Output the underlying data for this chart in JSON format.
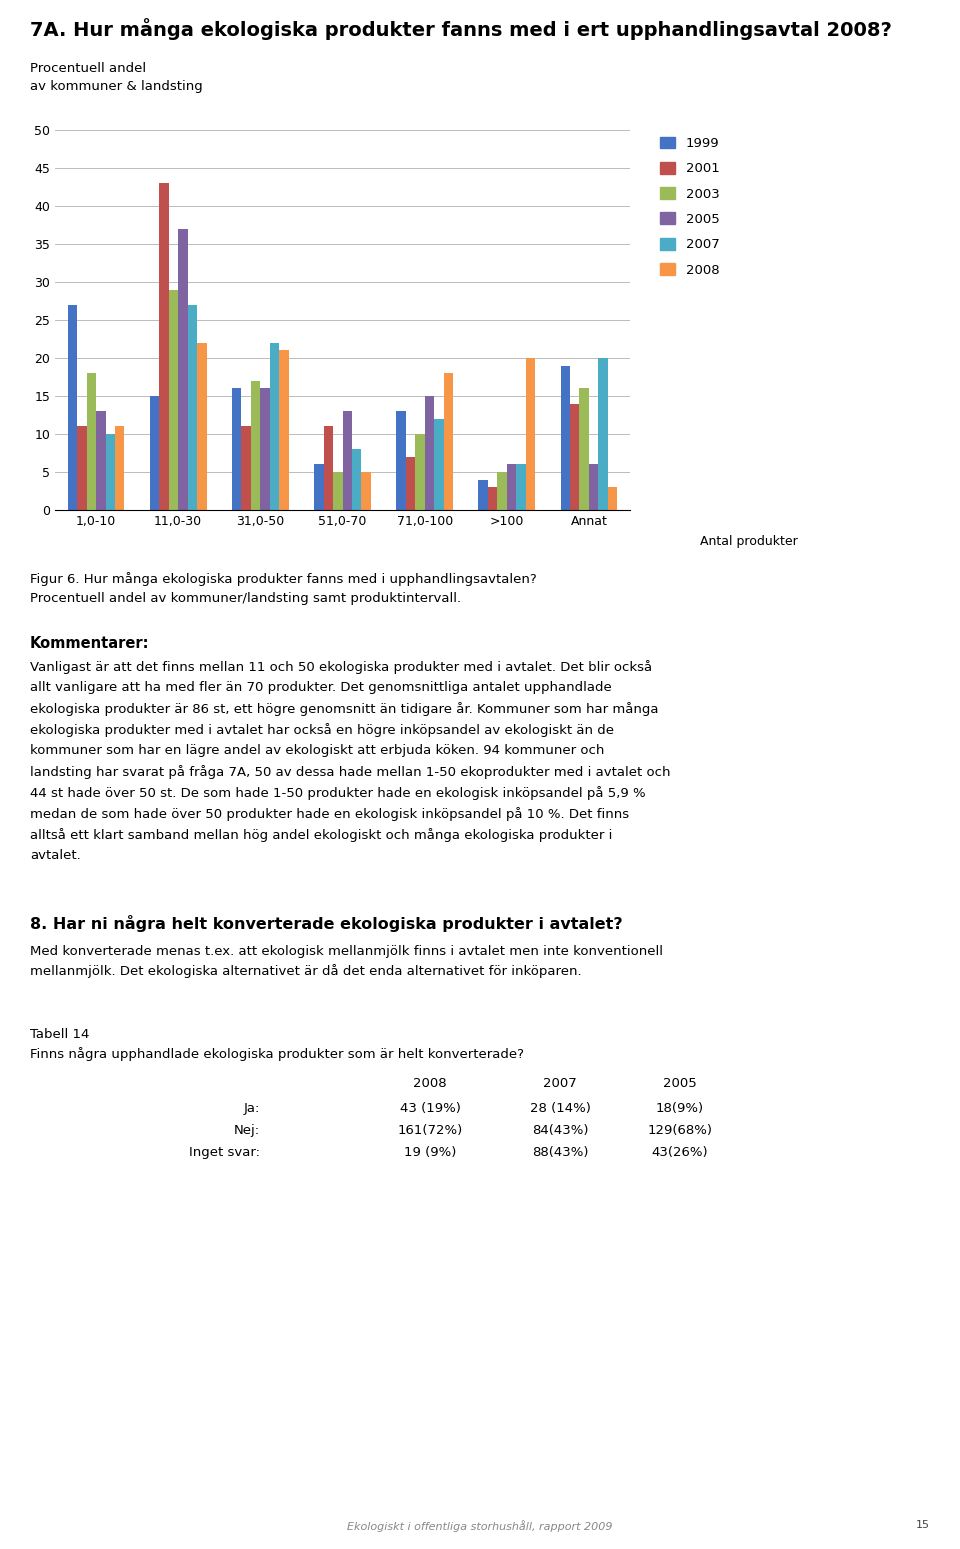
{
  "title": "7A. Hur många ekologiska produkter fanns med i ert upphandlingsavtal 2008?",
  "ylabel_line1": "Procentuell andel",
  "ylabel_line2": "av kommuner & landsting",
  "xlabel_suffix": "Antal produkter",
  "categories": [
    "1,0-10",
    "11,0-30",
    "31,0-50",
    "51,0-70",
    "71,0-100",
    ">100",
    "Annat"
  ],
  "years": [
    "1999",
    "2001",
    "2003",
    "2005",
    "2007",
    "2008"
  ],
  "colors": [
    "#4472C4",
    "#C0504D",
    "#9BBB59",
    "#8064A2",
    "#4BACC6",
    "#F79646"
  ],
  "data": {
    "1999": [
      27,
      15,
      16,
      6,
      13,
      4,
      19
    ],
    "2001": [
      11,
      43,
      11,
      11,
      7,
      3,
      14
    ],
    "2003": [
      18,
      29,
      17,
      5,
      10,
      5,
      16
    ],
    "2005": [
      13,
      37,
      16,
      13,
      15,
      6,
      6
    ],
    "2007": [
      10,
      27,
      22,
      8,
      12,
      6,
      20
    ],
    "2008": [
      11,
      22,
      21,
      5,
      18,
      20,
      3
    ]
  },
  "ylim": [
    0,
    50
  ],
  "yticks": [
    0,
    5,
    10,
    15,
    20,
    25,
    30,
    35,
    40,
    45,
    50
  ],
  "figure_caption_line1": "Figur 6. Hur många ekologiska produkter fanns med i upphandlingsavtalen?",
  "figure_caption_line2": "Procentuell andel av kommuner/landsting samt produktintervall.",
  "comment_title": "Kommentarer:",
  "comment_lines": [
    "Vanligast är att det finns mellan 11 och 50 ekologiska produkter med i avtalet. Det blir också",
    "allt vanligare att ha med fler än 70 produkter. Det genomsnittliga antalet upphandlade",
    "ekologiska produkter är 86 st, ett högre genomsnitt än tidigare år. Kommuner som har många",
    "ekologiska produkter med i avtalet har också en högre inköpsandel av ekologiskt än de",
    "kommuner som har en lägre andel av ekologiskt att erbjuda köken. 94 kommuner och",
    "landsting har svarat på fråga 7A, 50 av dessa hade mellan 1-50 ekoprodukter med i avtalet och",
    "44 st hade över 50 st. De som hade 1-50 produkter hade en ekologisk inköpsandel på 5,9 %",
    "medan de som hade över 50 produkter hade en ekologisk inköpsandel på 10 %. Det finns",
    "alltså ett klart samband mellan hög andel ekologiskt och många ekologiska produkter i",
    "avtalet."
  ],
  "section8_title": "8. Har ni några helt konverterade ekologiska produkter i avtalet?",
  "section8_lines": [
    "Med konverterade menas t.ex. att ekologisk mellanmjölk finns i avtalet men inte konventionell",
    "mellanmjölk. Det ekologiska alternativet är då det enda alternativet för inköparen."
  ],
  "table_title_line1": "Tabell 14",
  "table_title_line2": "Finns några upphandlade ekologiska produkter som är helt konverterade?",
  "table_col_headers": [
    "2008",
    "2007",
    "2005"
  ],
  "table_rows": [
    [
      "Ja:",
      "43 (19%)",
      "28 (14%)",
      "18(9%)"
    ],
    [
      "Nej:",
      "161(72%)",
      "84(43%)",
      "129(68%)"
    ],
    [
      "Inget svar:",
      "19 (9%)",
      "88(43%)",
      "43(26%)"
    ]
  ],
  "footer": "Ekologiskt i offentliga storhushåll, rapport 2009",
  "footer_page": "15",
  "background_color": "#FFFFFF"
}
